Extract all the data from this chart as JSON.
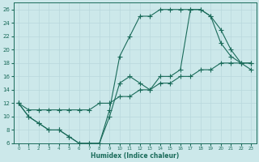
{
  "xlabel": "Humidex (Indice chaleur)",
  "bg_color": "#cce8ea",
  "grid_color": "#b0d4d8",
  "line_color": "#1a6b5a",
  "xlim": [
    -0.5,
    23.5
  ],
  "ylim": [
    6,
    27
  ],
  "xticks": [
    0,
    1,
    2,
    3,
    4,
    5,
    6,
    7,
    8,
    9,
    10,
    11,
    12,
    13,
    14,
    15,
    16,
    17,
    18,
    19,
    20,
    21,
    22,
    23
  ],
  "yticks": [
    6,
    8,
    10,
    12,
    14,
    16,
    18,
    20,
    22,
    24,
    26
  ],
  "line1_x": [
    0,
    1,
    2,
    3,
    4,
    5,
    6,
    7,
    8,
    9,
    10,
    11,
    12,
    13,
    14,
    15,
    16,
    17,
    18,
    19,
    20,
    21,
    22,
    23
  ],
  "line1_y": [
    12,
    10,
    9,
    8,
    8,
    7,
    6,
    6,
    6,
    11,
    19,
    22,
    25,
    25,
    26,
    26,
    26,
    26,
    26,
    25,
    21,
    19,
    18,
    17
  ],
  "line2_x": [
    0,
    1,
    2,
    3,
    4,
    5,
    6,
    7,
    8,
    9,
    10,
    11,
    12,
    13,
    14,
    15,
    16,
    17,
    18,
    19,
    20,
    21,
    22,
    23
  ],
  "line2_y": [
    12,
    10,
    9,
    8,
    8,
    7,
    6,
    6,
    6,
    10,
    15,
    16,
    15,
    14,
    16,
    16,
    17,
    26,
    26,
    25,
    23,
    20,
    18,
    18
  ],
  "line3_x": [
    0,
    1,
    2,
    3,
    4,
    5,
    6,
    7,
    8,
    9,
    10,
    11,
    12,
    13,
    14,
    15,
    16,
    17,
    18,
    19,
    20,
    21,
    22,
    23
  ],
  "line3_y": [
    12,
    11,
    11,
    11,
    11,
    11,
    11,
    11,
    12,
    12,
    13,
    13,
    14,
    14,
    15,
    15,
    16,
    16,
    17,
    17,
    18,
    18,
    18,
    18
  ],
  "markersize": 2.5,
  "linewidth": 0.8
}
